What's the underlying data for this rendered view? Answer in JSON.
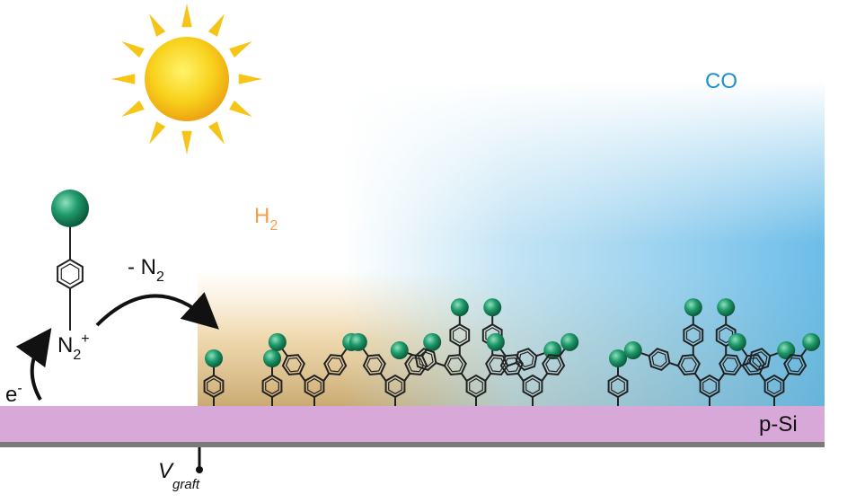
{
  "labels": {
    "co": "CO",
    "h2": {
      "text": "H",
      "sub": "2"
    },
    "loss": {
      "text": "- N",
      "sub": "2"
    },
    "diazonium": {
      "text": "N",
      "sub": "2",
      "sup": "+"
    },
    "electron": {
      "text": "e",
      "sup": "-"
    },
    "substrate": "p-Si",
    "potential": {
      "text": "V",
      "sub": "graft"
    }
  }
}
